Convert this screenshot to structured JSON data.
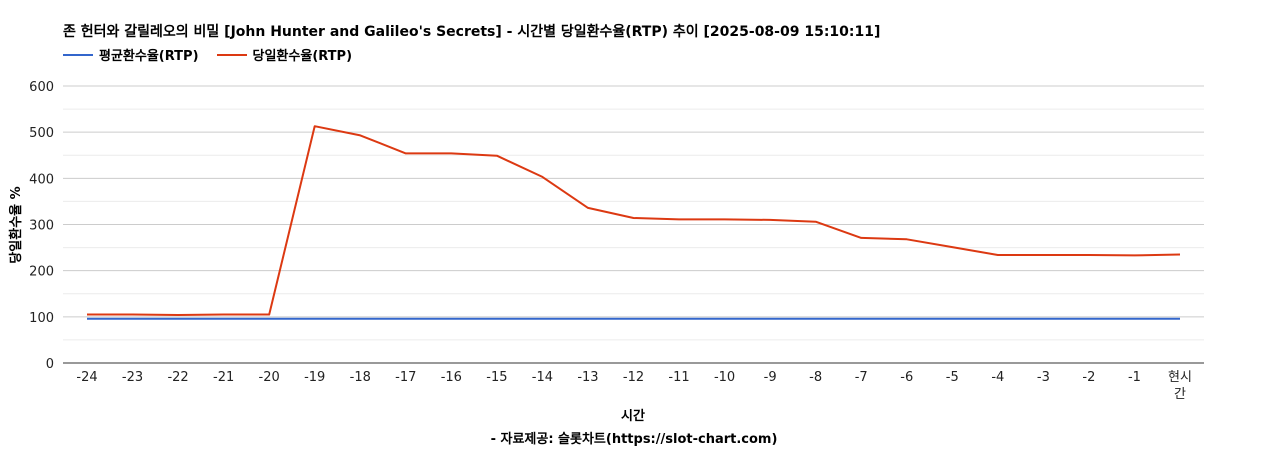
{
  "chart_data": {
    "type": "line",
    "title": "존 헌터와 갈릴레오의 비밀 [John Hunter and Galileo's Secrets] - 시간별 당일환수율(RTP) 추이 [2025-08-09 15:10:11]",
    "xlabel": "시간",
    "ylabel": "당일환수율 %",
    "source": "- 자료제공: 슬롯차트(https://slot-chart.com)",
    "categories": [
      "-24",
      "-23",
      "-22",
      "-21",
      "-20",
      "-19",
      "-18",
      "-17",
      "-16",
      "-15",
      "-14",
      "-13",
      "-12",
      "-11",
      "-10",
      "-9",
      "-8",
      "-7",
      "-6",
      "-5",
      "-4",
      "-3",
      "-2",
      "-1",
      "현시간"
    ],
    "ylim": [
      0,
      600
    ],
    "yticks": [
      0,
      100,
      200,
      300,
      400,
      500,
      600
    ],
    "grid": true,
    "legend_position": "top-left",
    "series": [
      {
        "name": "평균환수율(RTP)",
        "color": "#3366cc",
        "values": [
          96,
          96,
          96,
          96,
          96,
          96,
          96,
          96,
          96,
          96,
          96,
          96,
          96,
          96,
          96,
          96,
          96,
          96,
          96,
          96,
          96,
          96,
          96,
          96,
          96
        ]
      },
      {
        "name": "당일환수율(RTP)",
        "color": "#dc3912",
        "values": [
          105,
          105,
          104,
          105,
          105,
          513,
          493,
          454,
          454,
          449,
          403,
          336,
          314,
          311,
          311,
          310,
          306,
          271,
          268,
          251,
          234,
          234,
          234,
          233,
          235
        ]
      }
    ]
  }
}
